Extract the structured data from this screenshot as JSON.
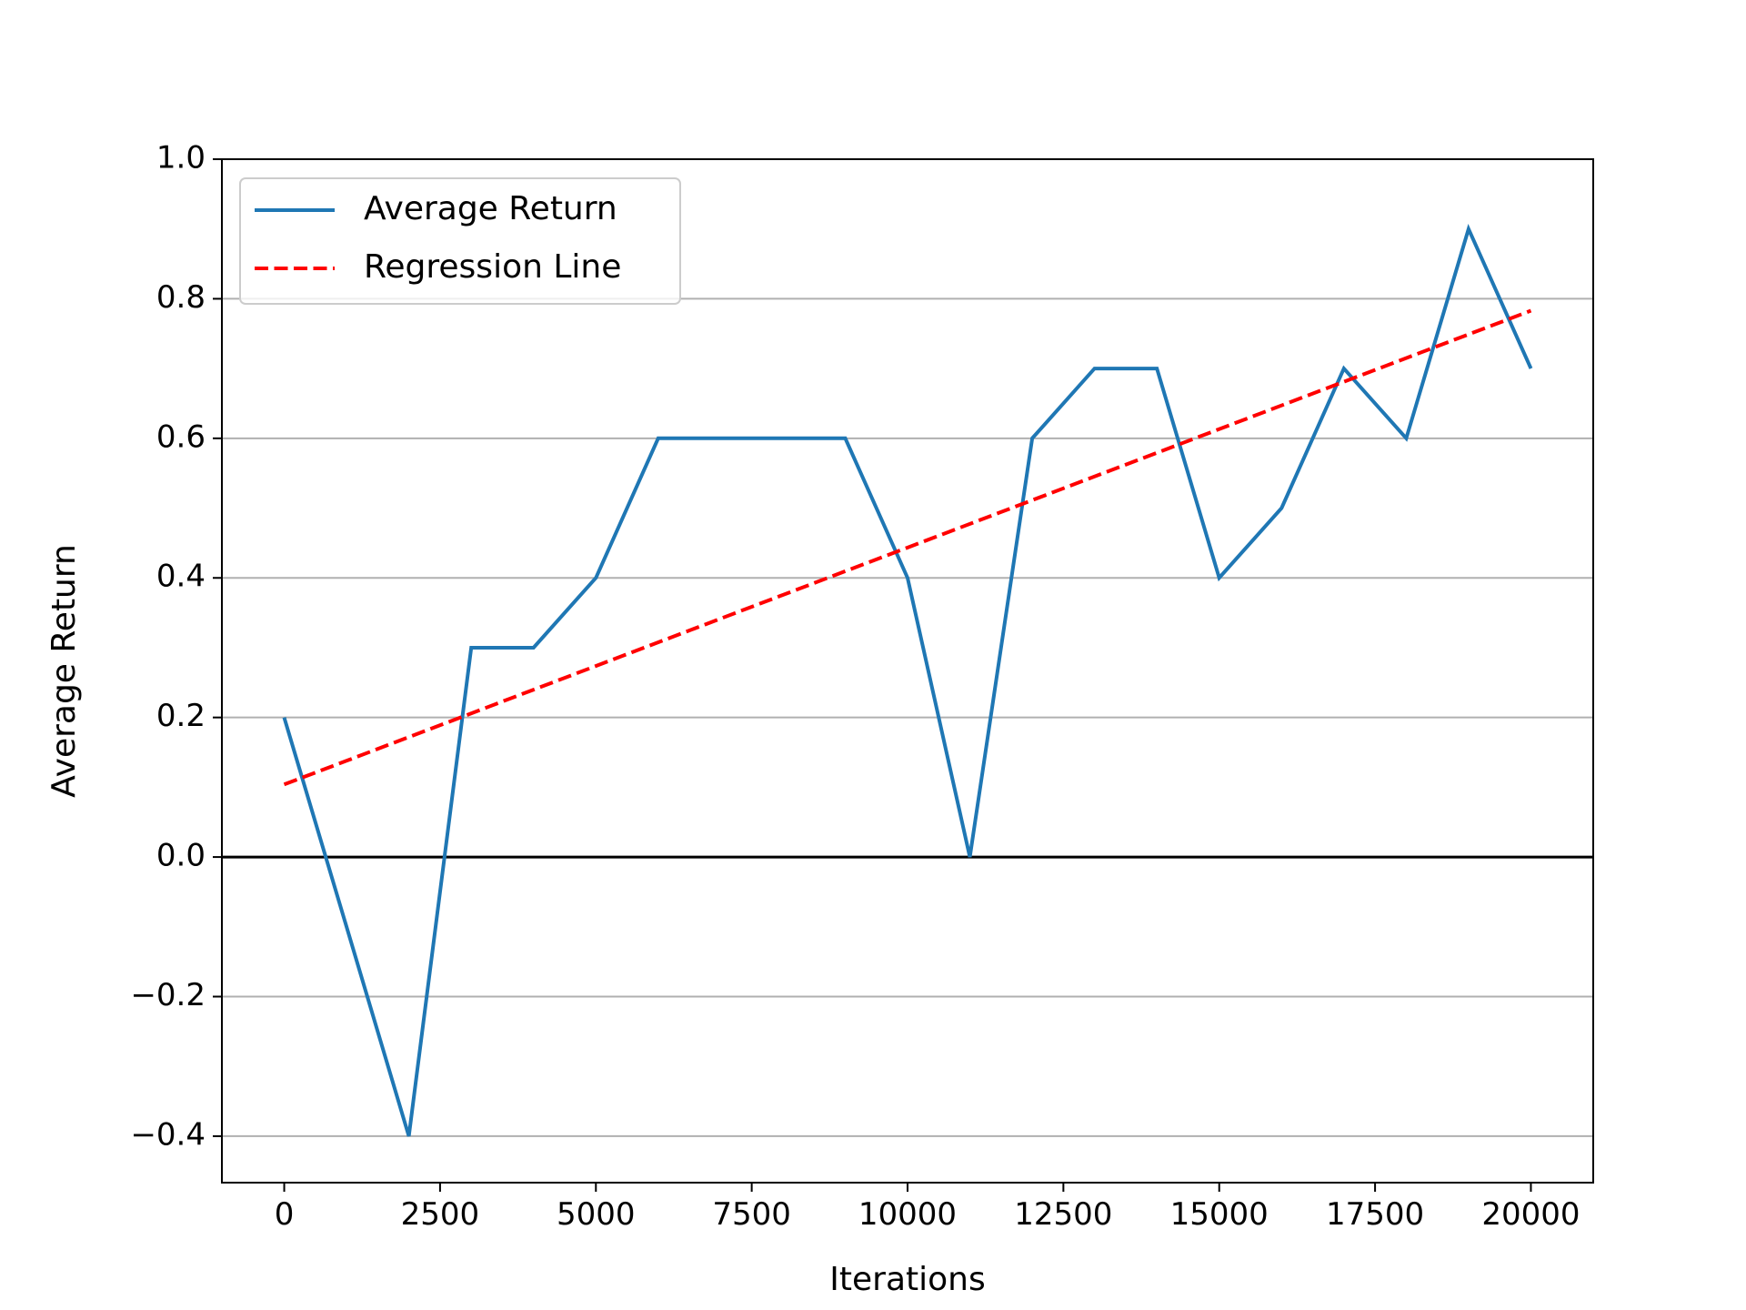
{
  "chart_data": {
    "type": "line",
    "title": "",
    "xlabel": "Iterations",
    "ylabel": "Average Return",
    "xlim": [
      -1000,
      21000
    ],
    "ylim": [
      -0.4666,
      1.0
    ],
    "xticks": [
      0,
      2500,
      5000,
      7500,
      10000,
      12500,
      15000,
      17500,
      20000
    ],
    "xtick_labels": [
      "0",
      "2500",
      "5000",
      "7500",
      "10000",
      "12500",
      "15000",
      "17500",
      "20000"
    ],
    "yticks": [
      -0.4,
      -0.2,
      0.0,
      0.2,
      0.4,
      0.6,
      0.8,
      1.0
    ],
    "ytick_labels": [
      "−0.4",
      "−0.2",
      "0.0",
      "0.2",
      "0.4",
      "0.6",
      "0.8",
      "1.0"
    ],
    "grid": "y-major",
    "zero_line": true,
    "legend_position": "upper-left",
    "x": [
      0,
      1000,
      2000,
      3000,
      4000,
      5000,
      6000,
      7000,
      8000,
      9000,
      10000,
      11000,
      12000,
      13000,
      14000,
      15000,
      16000,
      17000,
      18000,
      19000,
      20000
    ],
    "series": [
      {
        "name": "Average Return",
        "style": "solid",
        "color": "#1f77b4",
        "values": [
          0.2,
          -0.1,
          -0.4,
          0.3,
          0.3,
          0.4,
          0.6,
          0.6,
          0.6,
          0.6,
          0.4,
          0.0,
          0.6,
          0.7,
          0.7,
          0.4,
          0.5,
          0.7,
          0.6,
          0.9,
          0.7
        ]
      },
      {
        "name": "Regression Line",
        "style": "dashed",
        "color": "#ff0000",
        "x": [
          0,
          20000
        ],
        "values": [
          0.104,
          0.783
        ]
      }
    ]
  }
}
